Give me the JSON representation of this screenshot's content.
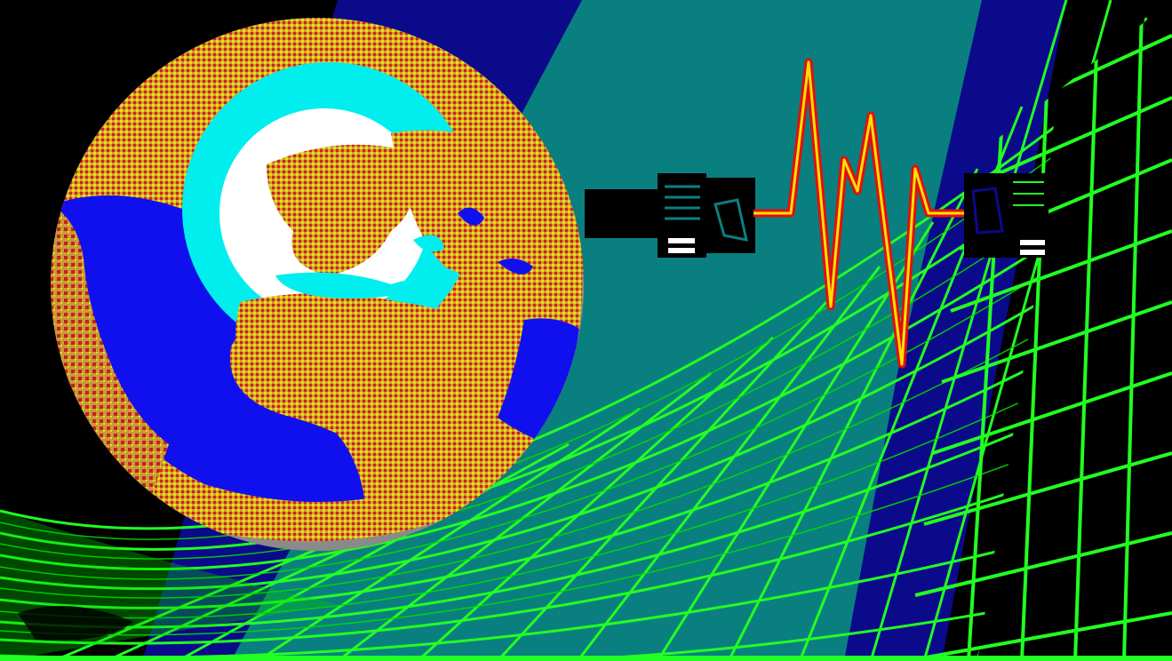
{
  "scene": {
    "description_labels": [],
    "palette": {
      "background": "#000000",
      "space_band_navy": "#0a0a8a",
      "space_band_teal": "#0a7f7f",
      "grid_green": "#22ff22",
      "grid_floor_green": "#00dd00",
      "ocean_blue": "#1010ee",
      "ice_cyan": "#00eeee",
      "snow_white": "#ffffff",
      "land_tan": "#c8a040",
      "land_red": "#d82010",
      "land_yellow": "#f0e000",
      "globe_shadow_gray": "#8a8a8a",
      "signal_red": "#e01010",
      "signal_yellow": "#ffe000",
      "connector_black": "#000000",
      "connector_gray": "#c0c0c0"
    },
    "elements": {
      "globe": "earth-globe",
      "connector_left": "bnc-plug",
      "signal": "heartbeat-waveform",
      "connector_right": "bnc-socket",
      "grid": "wireframe-grid"
    }
  }
}
